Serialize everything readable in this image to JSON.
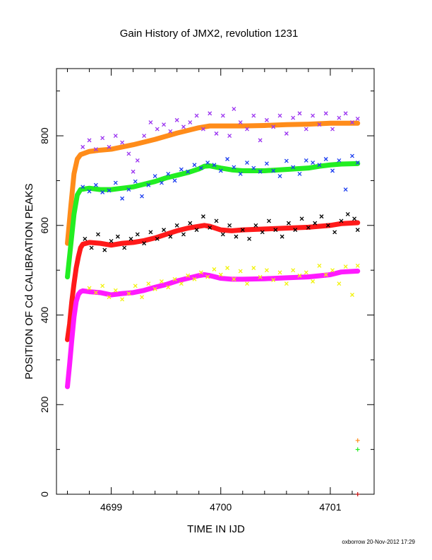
{
  "chart_data": {
    "type": "scatter",
    "title": "Gain History of JMX2, revolution 1231",
    "xlabel": "TIME IN IJD",
    "ylabel": "POSITION OF Cd CALIBRATION PEAKS",
    "xlim": [
      4698.5,
      4701.4
    ],
    "ylim": [
      0,
      950
    ],
    "x_ticks": [
      4699,
      4700,
      4701
    ],
    "x_minor_ticks": [
      4698.6,
      4698.8,
      4699.2,
      4699.4,
      4699.6,
      4699.8,
      4700.2,
      4700.4,
      4700.6,
      4700.8,
      4701.2
    ],
    "y_ticks": [
      0,
      200,
      400,
      600,
      800
    ],
    "y_minor_ticks": [
      100,
      300,
      500,
      700,
      900
    ],
    "grid": false,
    "footer": "oxborrow 20-Nov-2012 17:29",
    "colors": {
      "orange": "#ff8c1a",
      "purple": "#9a32f0",
      "green": "#22ee22",
      "blue": "#1a3cf0",
      "red": "#ff1a1a",
      "black": "#000000",
      "magenta": "#ff1aff",
      "yellow": "#f2f20a",
      "darkred": "#c01010"
    },
    "series": [
      {
        "color": "orange",
        "role": "smoothed",
        "x": [
          4698.6,
          4698.63,
          4698.66,
          4698.69,
          4698.72,
          4698.8,
          4698.9,
          4699.0,
          4699.2,
          4699.4,
          4699.6,
          4699.8,
          4699.9,
          4700.0,
          4700.2,
          4700.4,
          4700.6,
          4700.8,
          4701.0,
          4701.25
        ],
        "y": [
          560,
          640,
          715,
          748,
          758,
          765,
          768,
          770,
          780,
          792,
          806,
          818,
          822,
          822,
          822,
          823,
          825,
          826,
          828,
          828
        ]
      },
      {
        "color": "purple",
        "role": "raw",
        "x": [
          4698.74,
          4698.8,
          4698.86,
          4698.92,
          4698.98,
          4699.04,
          4699.1,
          4699.16,
          4699.2,
          4699.24,
          4699.3,
          4699.36,
          4699.42,
          4699.48,
          4699.54,
          4699.6,
          4699.66,
          4699.72,
          4699.78,
          4699.84,
          4699.9,
          4699.96,
          4700.02,
          4700.08,
          4700.12,
          4700.18,
          4700.24,
          4700.3,
          4700.36,
          4700.42,
          4700.48,
          4700.54,
          4700.6,
          4700.66,
          4700.72,
          4700.78,
          4700.84,
          4700.9,
          4700.96,
          4701.02,
          4701.08,
          4701.14,
          4701.2,
          4701.25
        ],
        "y": [
          775,
          790,
          770,
          795,
          775,
          800,
          785,
          760,
          720,
          745,
          800,
          830,
          815,
          825,
          810,
          835,
          820,
          830,
          845,
          815,
          850,
          805,
          845,
          800,
          860,
          830,
          815,
          845,
          790,
          835,
          820,
          845,
          805,
          840,
          850,
          815,
          845,
          825,
          850,
          815,
          840,
          850,
          830,
          838
        ]
      },
      {
        "color": "green",
        "role": "smoothed",
        "x": [
          4698.6,
          4698.63,
          4698.66,
          4698.69,
          4698.72,
          4698.8,
          4698.9,
          4699.0,
          4699.1,
          4699.2,
          4699.3,
          4699.4,
          4699.5,
          4699.6,
          4699.7,
          4699.8,
          4699.85,
          4699.9,
          4700.0,
          4700.1,
          4700.2,
          4700.4,
          4700.6,
          4700.8,
          4700.9,
          4701.0,
          4701.1,
          4701.25
        ],
        "y": [
          485,
          555,
          625,
          668,
          680,
          683,
          680,
          680,
          683,
          686,
          692,
          698,
          706,
          712,
          718,
          726,
          732,
          733,
          728,
          724,
          722,
          722,
          725,
          728,
          732,
          735,
          737,
          738
        ]
      },
      {
        "color": "blue",
        "role": "raw",
        "x": [
          4698.74,
          4698.8,
          4698.86,
          4698.92,
          4698.98,
          4699.04,
          4699.1,
          4699.16,
          4699.22,
          4699.28,
          4699.34,
          4699.4,
          4699.46,
          4699.52,
          4699.58,
          4699.64,
          4699.7,
          4699.76,
          4699.82,
          4699.88,
          4699.94,
          4700.0,
          4700.06,
          4700.12,
          4700.18,
          4700.24,
          4700.3,
          4700.36,
          4700.42,
          4700.48,
          4700.54,
          4700.6,
          4700.66,
          4700.72,
          4700.78,
          4700.84,
          4700.9,
          4700.96,
          4701.02,
          4701.08,
          4701.14,
          4701.2,
          4701.25
        ],
        "y": [
          686,
          676,
          690,
          674,
          678,
          695,
          660,
          680,
          698,
          665,
          690,
          710,
          695,
          715,
          700,
          725,
          720,
          735,
          728,
          740,
          735,
          722,
          748,
          730,
          715,
          740,
          728,
          720,
          738,
          722,
          710,
          744,
          730,
          715,
          745,
          740,
          735,
          748,
          722,
          745,
          680,
          755,
          740
        ]
      },
      {
        "color": "red",
        "role": "smoothed",
        "x": [
          4698.6,
          4698.62,
          4698.64,
          4698.66,
          4698.68,
          4698.7,
          4698.72,
          4698.74,
          4698.8,
          4698.9,
          4699.0,
          4699.1,
          4699.2,
          4699.3,
          4699.4,
          4699.5,
          4699.6,
          4699.7,
          4699.8,
          4699.85,
          4699.9,
          4700.0,
          4700.1,
          4700.2,
          4700.4,
          4700.6,
          4700.8,
          4701.0,
          4701.1,
          4701.25
        ],
        "y": [
          345,
          380,
          430,
          470,
          505,
          530,
          550,
          558,
          562,
          560,
          556,
          560,
          562,
          566,
          572,
          580,
          588,
          594,
          598,
          600,
          598,
          590,
          588,
          590,
          592,
          594,
          596,
          600,
          604,
          606
        ]
      },
      {
        "color": "black",
        "role": "raw",
        "x": [
          4698.76,
          4698.82,
          4698.88,
          4698.94,
          4699.0,
          4699.06,
          4699.12,
          4699.18,
          4699.24,
          4699.3,
          4699.36,
          4699.42,
          4699.48,
          4699.54,
          4699.6,
          4699.66,
          4699.72,
          4699.78,
          4699.84,
          4699.9,
          4699.96,
          4700.02,
          4700.08,
          4700.14,
          4700.2,
          4700.26,
          4700.32,
          4700.38,
          4700.44,
          4700.5,
          4700.56,
          4700.62,
          4700.68,
          4700.74,
          4700.8,
          4700.86,
          4700.92,
          4700.98,
          4701.04,
          4701.1,
          4701.16,
          4701.22,
          4701.25
        ],
        "y": [
          570,
          550,
          580,
          545,
          565,
          575,
          550,
          570,
          580,
          560,
          585,
          570,
          590,
          575,
          600,
          580,
          605,
          590,
          620,
          595,
          610,
          580,
          600,
          575,
          590,
          570,
          600,
          585,
          610,
          590,
          575,
          605,
          590,
          615,
          595,
          605,
          620,
          600,
          585,
          610,
          625,
          615,
          590
        ]
      },
      {
        "color": "magenta",
        "role": "smoothed",
        "x": [
          4698.6,
          4698.62,
          4698.64,
          4698.66,
          4698.68,
          4698.7,
          4698.72,
          4698.74,
          4698.8,
          4698.9,
          4699.0,
          4699.1,
          4699.2,
          4699.3,
          4699.4,
          4699.5,
          4699.6,
          4699.7,
          4699.8,
          4699.85,
          4699.9,
          4700.0,
          4700.1,
          4700.2,
          4700.4,
          4700.6,
          4700.8,
          4701.0,
          4701.1,
          4701.25
        ],
        "y": [
          240,
          290,
          345,
          395,
          430,
          446,
          452,
          454,
          452,
          450,
          445,
          448,
          450,
          455,
          462,
          468,
          476,
          482,
          488,
          490,
          488,
          482,
          480,
          480,
          481,
          483,
          485,
          490,
          496,
          498
        ]
      },
      {
        "color": "yellow",
        "role": "raw",
        "x": [
          4698.8,
          4698.86,
          4698.92,
          4698.98,
          4699.04,
          4699.1,
          4699.16,
          4699.22,
          4699.28,
          4699.34,
          4699.4,
          4699.46,
          4699.52,
          4699.58,
          4699.64,
          4699.7,
          4699.76,
          4699.82,
          4699.88,
          4699.94,
          4700.0,
          4700.06,
          4700.12,
          4700.18,
          4700.24,
          4700.3,
          4700.36,
          4700.42,
          4700.48,
          4700.54,
          4700.6,
          4700.66,
          4700.72,
          4700.78,
          4700.84,
          4700.9,
          4700.96,
          4701.02,
          4701.08,
          4701.14,
          4701.2,
          4701.25
        ],
        "y": [
          460,
          450,
          465,
          440,
          455,
          435,
          448,
          465,
          440,
          470,
          458,
          475,
          462,
          480,
          470,
          488,
          480,
          495,
          485,
          502,
          490,
          505,
          480,
          498,
          470,
          505,
          485,
          500,
          478,
          495,
          470,
          500,
          488,
          495,
          475,
          510,
          490,
          500,
          470,
          508,
          445,
          510
        ]
      },
      {
        "color": "orange",
        "role": "marker",
        "x": [
          4701.25
        ],
        "y": [
          120
        ]
      },
      {
        "color": "green",
        "role": "marker",
        "x": [
          4701.25
        ],
        "y": [
          100
        ]
      },
      {
        "color": "darkred",
        "role": "marker",
        "x": [
          4701.25
        ],
        "y": [
          0
        ]
      }
    ]
  }
}
